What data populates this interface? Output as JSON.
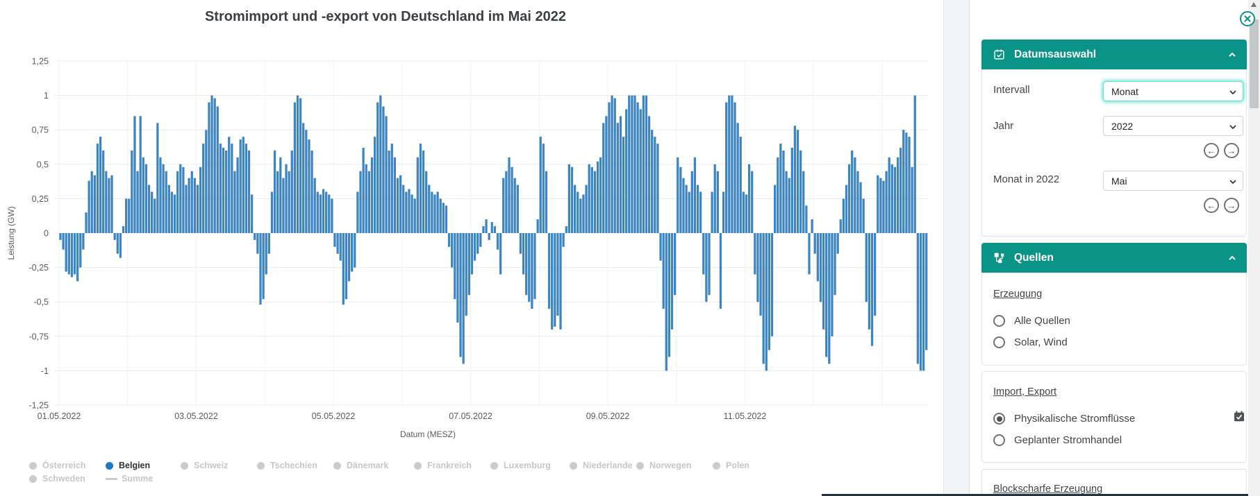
{
  "chart": {
    "title": "Stromimport und -export von Deutschland im Mai 2022",
    "xlabel": "Datum (MESZ)",
    "ylabel": "Leistung (GW)"
  },
  "chart_data": {
    "type": "bar",
    "title": "Stromimport und -export von Deutschland im Mai 2022",
    "xlabel": "Datum (MESZ)",
    "ylabel": "Leistung (GW)",
    "x_start": "01.05.2022 00:00",
    "x_step_hours": 1,
    "ylim": [
      -1.25,
      1.25
    ],
    "ytick_labels": [
      "1,25",
      "1",
      "0,75",
      "0,5",
      "0,25",
      "0",
      "-0,25",
      "-0,5",
      "-0,75",
      "-1",
      "-1,25"
    ],
    "xtick_labels": [
      "01.05.2022",
      "03.05.2022",
      "05.05.2022",
      "07.05.2022",
      "09.05.2022",
      "11.05.2022"
    ],
    "bar_color": "#3e85bd",
    "series_name": "Belgien",
    "unit": "GW",
    "values": [
      -0.05,
      -0.12,
      -0.28,
      -0.3,
      -0.32,
      -0.3,
      -0.35,
      -0.25,
      -0.12,
      0.15,
      0.38,
      0.45,
      0.42,
      0.65,
      0.7,
      0.6,
      0.45,
      0.4,
      0.42,
      -0.05,
      -0.15,
      -0.18,
      0.05,
      0.25,
      0.25,
      0.6,
      0.85,
      0.45,
      0.85,
      0.55,
      0.5,
      0.35,
      0.3,
      0.25,
      0.8,
      0.55,
      0.5,
      0.45,
      0.35,
      0.3,
      0.28,
      0.45,
      0.5,
      0.48,
      0.35,
      0.4,
      0.45,
      0.4,
      0.35,
      0.48,
      0.65,
      0.75,
      0.95,
      1,
      0.98,
      0.92,
      0.65,
      0.62,
      0.6,
      0.7,
      0.65,
      0.45,
      0.55,
      0.68,
      0.7,
      0.65,
      0.6,
      0.28,
      -0.05,
      -0.15,
      -0.52,
      -0.48,
      -0.3,
      -0.15,
      0.3,
      0.6,
      0.45,
      0.55,
      0.4,
      0.5,
      0.45,
      0.6,
      0.95,
      1,
      0.98,
      0.8,
      0.75,
      0.68,
      0.6,
      0.4,
      0.3,
      0.28,
      0.32,
      0.3,
      0.28,
      0.25,
      -0.1,
      -0.15,
      -0.2,
      -0.52,
      -0.48,
      -0.35,
      -0.28,
      -0.25,
      0.3,
      0.45,
      0.62,
      0.5,
      0.45,
      0.55,
      0.7,
      0.95,
      1,
      0.92,
      0.85,
      0.6,
      0.65,
      0.55,
      0.4,
      0.42,
      0.35,
      0.3,
      0.32,
      0.28,
      0.25,
      0.55,
      0.65,
      0.6,
      0.45,
      0.35,
      0.3,
      0.28,
      0.3,
      0.25,
      0.22,
      0.2,
      -0.1,
      -0.25,
      -0.48,
      -0.65,
      -0.9,
      -0.95,
      -0.6,
      -0.45,
      -0.3,
      -0.2,
      -0.15,
      -0.1,
      0.05,
      0.1,
      -0.05,
      0.08,
      0.05,
      -0.12,
      -0.3,
      0.4,
      0.45,
      0.55,
      0.48,
      0.4,
      0.35,
      -0.15,
      -0.3,
      -0.45,
      -0.5,
      -0.55,
      -0.48,
      0.1,
      0.7,
      0.65,
      0.45,
      -0.55,
      -0.7,
      -0.68,
      -0.6,
      -0.7,
      -0.1,
      0.05,
      0.5,
      0.48,
      0.35,
      0.3,
      0.25,
      0.28,
      0.35,
      0.5,
      0.48,
      0.45,
      0.52,
      0.55,
      0.8,
      0.85,
      0.95,
      1,
      0.98,
      0.8,
      0.85,
      0.7,
      0.9,
      1,
      1,
      1,
      0.95,
      0.9,
      1,
      1,
      0.85,
      0.75,
      0.7,
      0.65,
      -0.2,
      -0.55,
      -1,
      -0.9,
      -0.7,
      -0.45,
      0.55,
      0.48,
      0.4,
      0.35,
      0.3,
      0.45,
      0.55,
      0.35,
      0.3,
      -0.3,
      -0.5,
      -0.45,
      0.3,
      0.5,
      0.45,
      -0.55,
      0.3,
      0.95,
      1,
      1,
      0.95,
      0.8,
      0.7,
      0.3,
      0.28,
      0.5,
      0.45,
      -0.3,
      -0.5,
      -0.6,
      -0.95,
      -1,
      -0.85,
      -0.75,
      0.35,
      0.55,
      0.65,
      0.6,
      0.45,
      0.4,
      0.62,
      0.78,
      0.75,
      0.6,
      0.45,
      0.2,
      -0.3,
      0.1,
      -0.15,
      -0.35,
      -0.5,
      -0.7,
      -0.9,
      -0.95,
      -0.75,
      -0.45,
      -0.15,
      0.1,
      0.25,
      0.35,
      0.5,
      0.6,
      0.55,
      0.45,
      0.37,
      0.25,
      -0.5,
      -0.7,
      -0.82,
      -0.6,
      0.42,
      0.4,
      0.38,
      0.45,
      0.55,
      0.5,
      0.48,
      0.55,
      0.62,
      0.75,
      0.73,
      0.7,
      0.48,
      1,
      -0.95,
      -1,
      -1,
      -0.85
    ],
    "legend": [
      {
        "label": "Österreich",
        "active": false,
        "marker": "dot",
        "row": 1
      },
      {
        "label": "Belgien",
        "active": true,
        "marker": "dot",
        "row": 1,
        "color": "#2377bd"
      },
      {
        "label": "Schweiz",
        "active": false,
        "marker": "dot",
        "row": 1
      },
      {
        "label": "Tschechien",
        "active": false,
        "marker": "dot",
        "row": 1
      },
      {
        "label": "Dänemark",
        "active": false,
        "marker": "dot",
        "row": 1
      },
      {
        "label": "Frankreich",
        "active": false,
        "marker": "dot",
        "row": 1
      },
      {
        "label": "Luxemburg",
        "active": false,
        "marker": "dot",
        "row": 1
      },
      {
        "label": "Niederlande",
        "active": false,
        "marker": "dot",
        "row": 1
      },
      {
        "label": "Norwegen",
        "active": false,
        "marker": "dot",
        "row": 1
      },
      {
        "label": "Polen",
        "active": false,
        "marker": "dot",
        "row": 1
      },
      {
        "label": "Schweden",
        "active": false,
        "marker": "dot",
        "row": 2
      },
      {
        "label": "Summe",
        "active": false,
        "marker": "line",
        "row": 2
      }
    ],
    "legend_inactive_color": "#c8ccd0",
    "grid": true
  },
  "sidebar": {
    "accent_color": "#0a9488",
    "datumsauswahl": {
      "title": "Datumsauswahl",
      "intervall_label": "Intervall",
      "intervall_value": "Monat",
      "jahr_label": "Jahr",
      "jahr_value": "2022",
      "monat_label": "Monat in 2022",
      "monat_value": "Mai"
    },
    "quellen": {
      "title": "Quellen",
      "erzeugung_link": "Erzeugung",
      "erzeugung_options": [
        "Alle Quellen",
        "Solar, Wind"
      ],
      "erzeugung_selected": "",
      "import_export_link": "Import, Export",
      "import_export_options": [
        "Physikalische Stromflüsse",
        "Geplanter Stromhandel"
      ],
      "import_export_selected": "Physikalische Stromflüsse",
      "blockscharfe_link": "Blockscharfe Erzeugung"
    }
  }
}
